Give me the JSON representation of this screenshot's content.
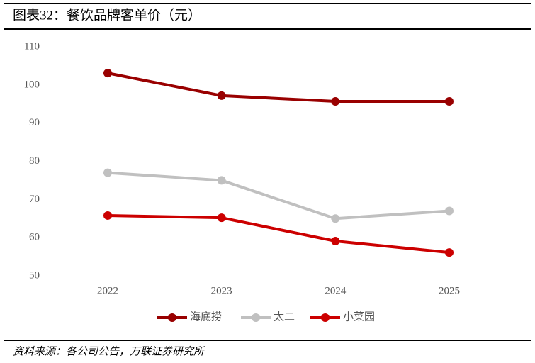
{
  "chart_data": {
    "type": "line",
    "title": "图表32：餐饮品牌客单价（元）",
    "categories": [
      "2022",
      "2023",
      "2024",
      "2025"
    ],
    "series": [
      {
        "name": "海底捞",
        "color": "#990000",
        "values": [
          103.1,
          97.2,
          95.7,
          95.7
        ]
      },
      {
        "name": "太二",
        "color": "#c0c0c0",
        "values": [
          77,
          75,
          65,
          67
        ]
      },
      {
        "name": "小菜园",
        "color": "#cc0000",
        "values": [
          65.8,
          65.2,
          59.1,
          56.1
        ]
      }
    ],
    "ylim": [
      50,
      110
    ],
    "yticks": [
      50,
      60,
      70,
      80,
      90,
      100,
      110
    ],
    "grid": false,
    "legend": "bottom",
    "source": "资料来源：各公司公告，万联证券研究所"
  }
}
